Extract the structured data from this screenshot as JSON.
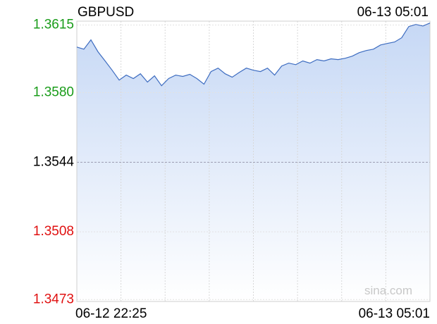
{
  "chart_data": {
    "type": "area",
    "title": "GBPUSD",
    "watermark": "sina.com",
    "categories": [
      "06-12 22:25",
      null,
      null,
      null,
      null,
      null,
      null,
      null,
      null,
      null,
      null,
      null,
      null,
      null,
      null,
      null,
      null,
      null,
      null,
      null,
      null,
      null,
      null,
      null,
      null,
      null,
      null,
      null,
      null,
      null,
      null,
      null,
      null,
      null,
      null,
      null,
      null,
      null,
      null,
      null,
      null,
      null,
      null,
      null,
      null,
      null,
      null,
      null,
      null,
      null,
      "06-13 05:01"
    ],
    "values": [
      1.36036,
      1.36025,
      1.36073,
      1.36011,
      1.35964,
      1.35916,
      1.35865,
      1.35891,
      1.35873,
      1.35898,
      1.35855,
      1.35887,
      1.35836,
      1.35873,
      1.35891,
      1.35884,
      1.35895,
      1.35873,
      1.35844,
      1.35909,
      1.35927,
      1.35898,
      1.3588,
      1.35905,
      1.35927,
      1.35916,
      1.35909,
      1.35927,
      1.35891,
      1.35938,
      1.35953,
      1.35945,
      1.35964,
      1.35953,
      1.35971,
      1.35964,
      1.35975,
      1.35971,
      1.35978,
      1.35989,
      1.36007,
      1.36018,
      1.36025,
      1.36047,
      1.36055,
      1.36062,
      1.36084,
      1.36142,
      1.36153,
      1.36145,
      1.3616
    ],
    "color": "#3d6cc0",
    "fill_color": "#c6d8f5",
    "up_color": "#1a9c1a",
    "down_color": "#e01010",
    "ylim": [
      1.3472,
      1.3617
    ],
    "yticks": [
      1.3473,
      1.3508,
      1.3544,
      {
        "value": 1.358,
        "label": "1.3580"
      },
      1.3615
    ],
    "grid": true
  }
}
